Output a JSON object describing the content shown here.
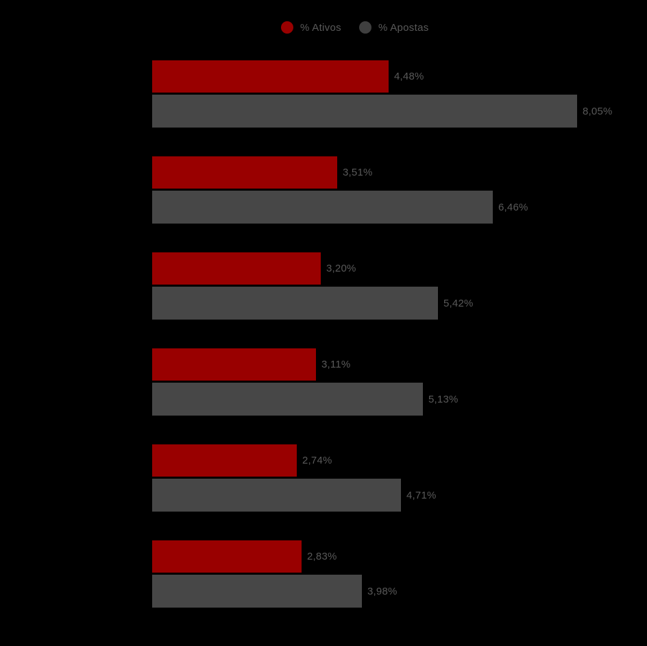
{
  "chart_data": {
    "type": "bar",
    "orientation": "horizontal",
    "title": "",
    "background_color": "#000000",
    "grid": false,
    "value_axis": {
      "min": 0,
      "max_visible_value": 8.05,
      "tick_labels_visible": false
    },
    "category_axis": {
      "tick_labels_visible": false,
      "categories_count": 6
    },
    "legend": {
      "position": "top-center",
      "text_color": "#595959",
      "items": [
        {
          "label": "% Ativos",
          "color": "#990000"
        },
        {
          "label": "% Apostas",
          "color": "#3f3f3f"
        }
      ]
    },
    "data_label_color": "#595959",
    "series": [
      {
        "name": "% Ativos",
        "color": "#990000",
        "values": [
          4.48,
          3.51,
          3.2,
          3.11,
          2.74,
          2.83
        ],
        "labels": [
          "4,48%",
          "3,51%",
          "3,20%",
          "3,11%",
          "2,74%",
          "2,83%"
        ]
      },
      {
        "name": "% Apostas",
        "color": "#474747",
        "values": [
          8.05,
          6.46,
          5.42,
          5.13,
          4.71,
          3.98
        ],
        "labels": [
          "8,05%",
          "6,46%",
          "5,42%",
          "5,13%",
          "4,71%",
          "3,98%"
        ]
      }
    ]
  }
}
